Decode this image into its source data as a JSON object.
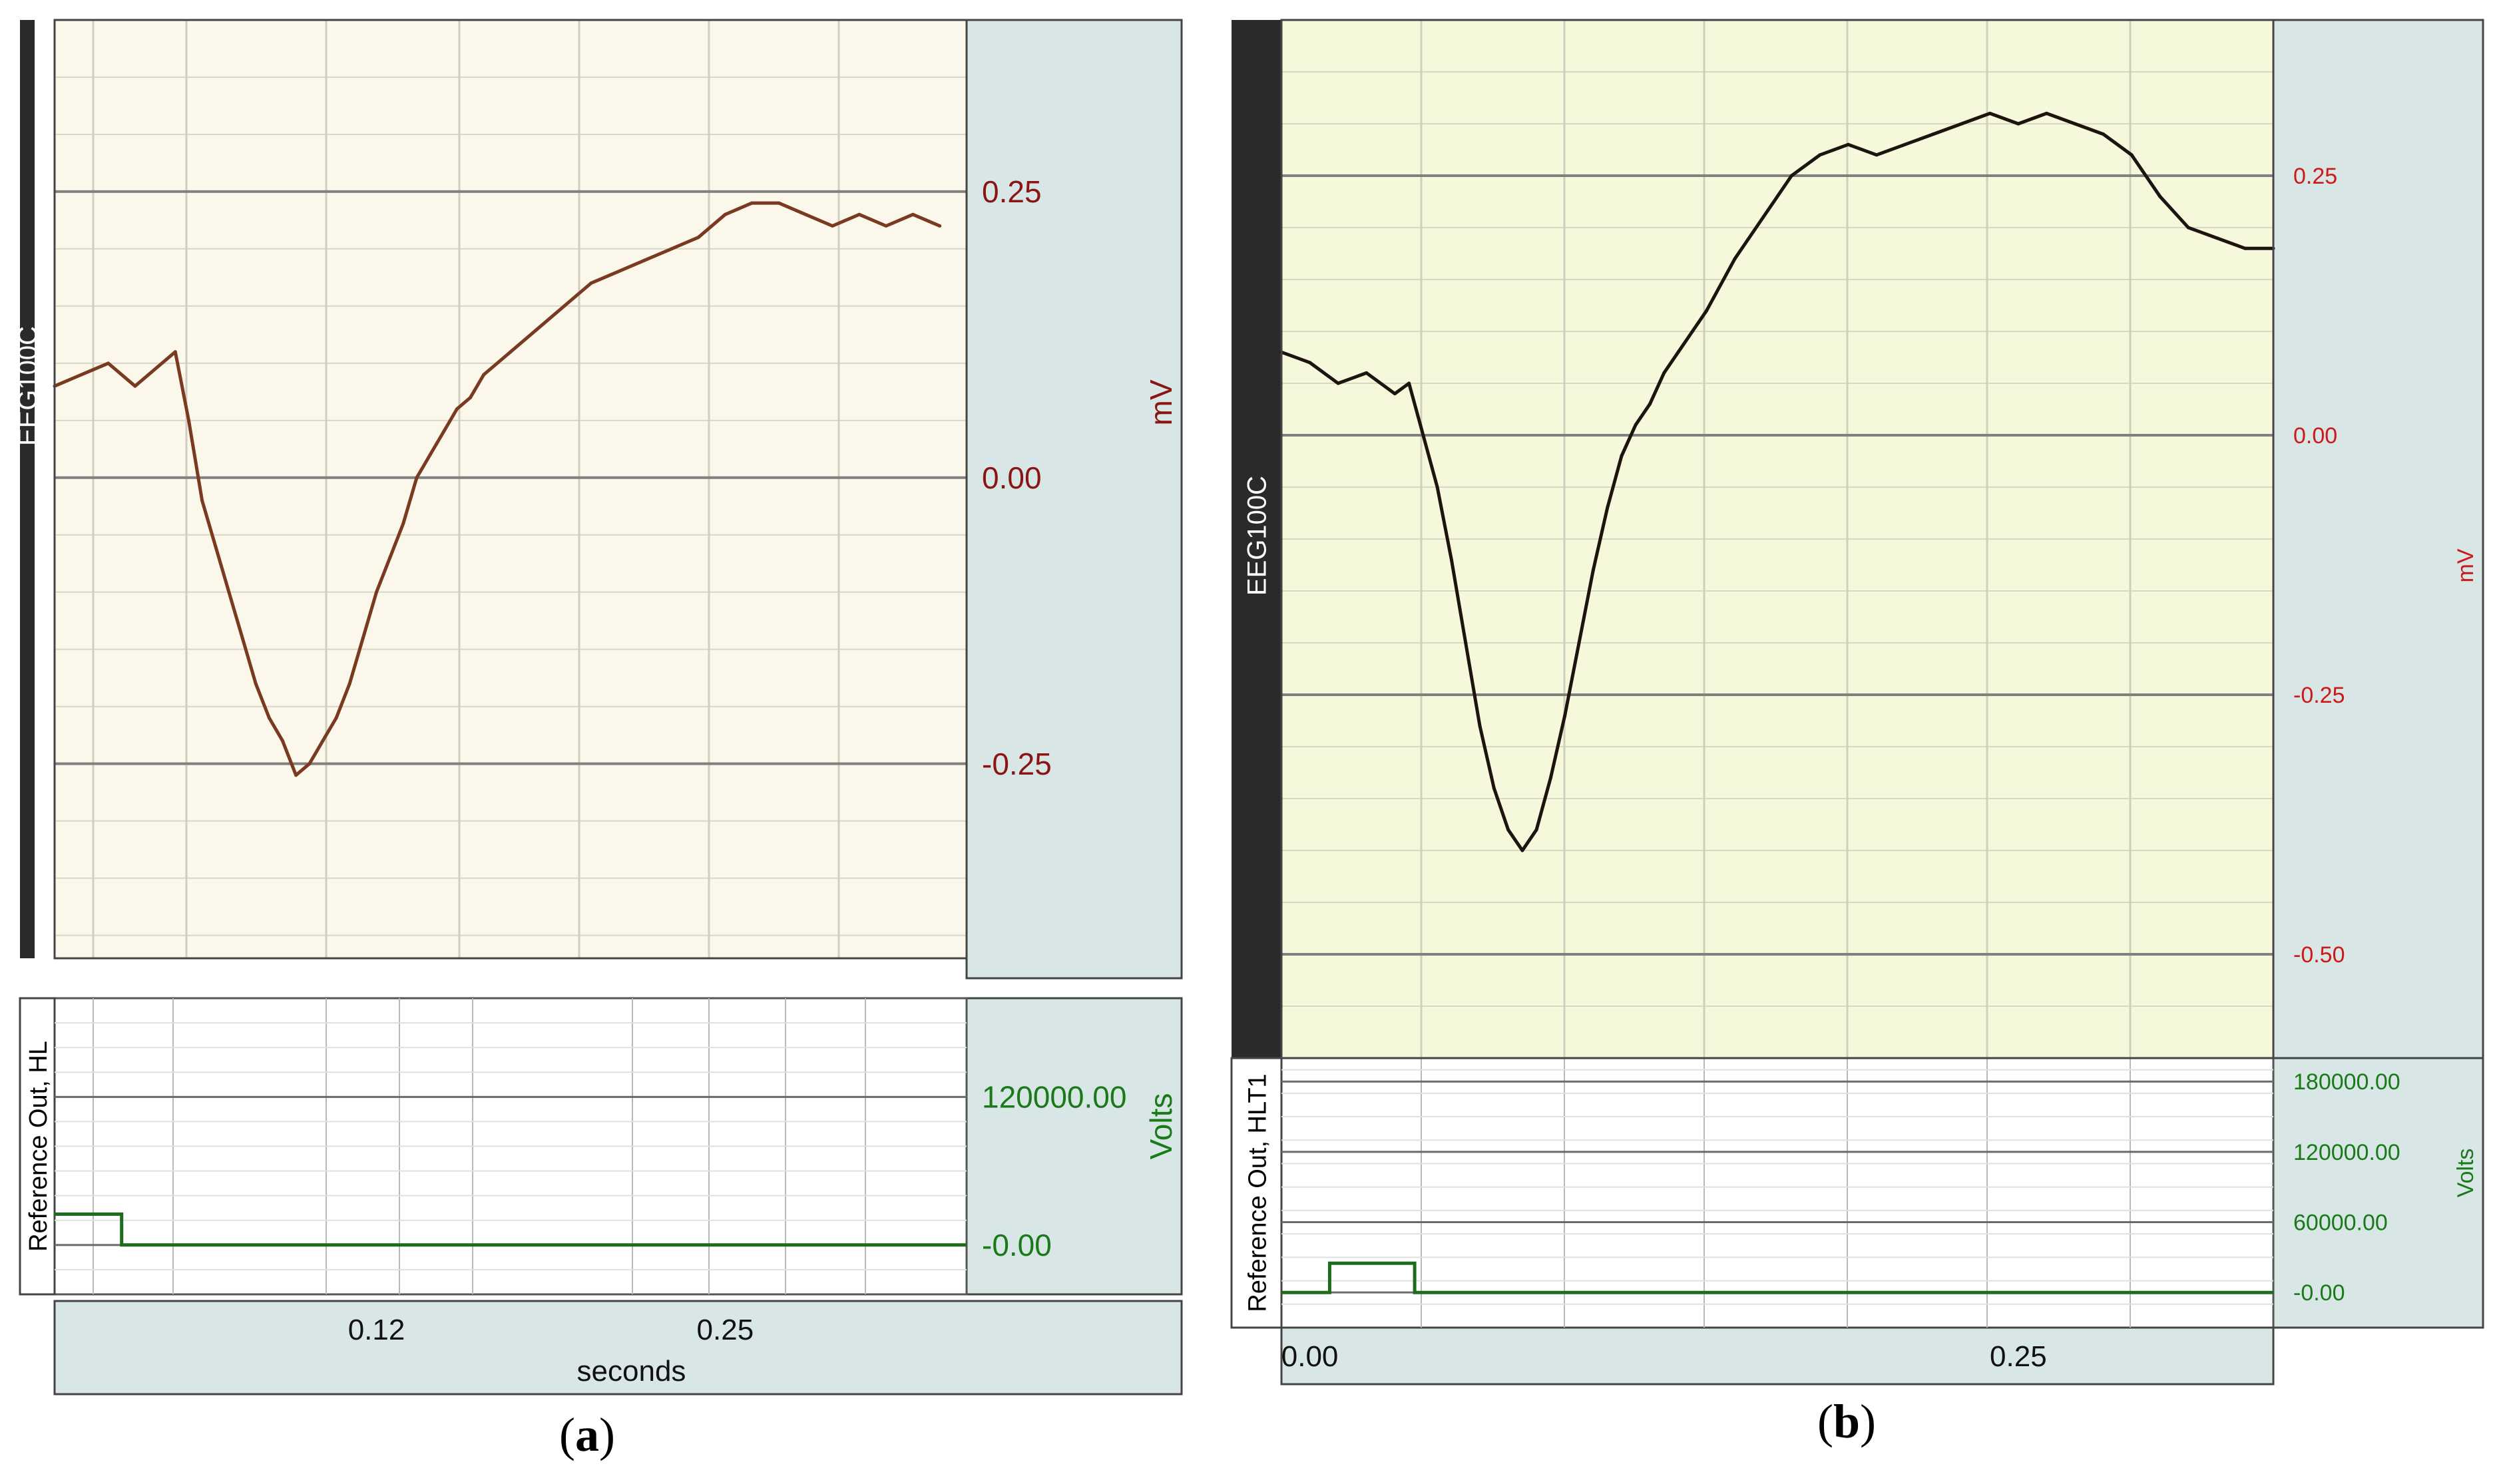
{
  "captions": {
    "a": "a",
    "b": "b"
  },
  "colors": {
    "plot_bg_a": "#fbf7ea",
    "plot_bg_b": "#f6f8dc",
    "lower_bg": "#ffffff",
    "side_panel": "#d9e6e6",
    "dark_strip": "#2a2a2a",
    "eeg_trace_a": "#7a3a22",
    "eeg_trace_b": "#1e140f",
    "ref_trace": "#1d6b1d",
    "mv_tick": "#cc1a1a",
    "mv_tick_a": "#8a1515",
    "volts_tick": "#1a7a1a"
  },
  "chart_data": [
    {
      "id": "a",
      "type": "line",
      "upper": {
        "channel_label": "EEG100C",
        "unit": "mV",
        "ytick_labels": [
          "0.25",
          "0.00",
          "-0.25"
        ],
        "yticks": [
          0.25,
          0.0,
          -0.25
        ],
        "ylim": [
          -0.42,
          0.4
        ],
        "xlim": [
          0.0,
          0.34
        ],
        "series": [
          {
            "name": "EEG100C",
            "x": [
              0.0,
              0.01,
              0.02,
              0.03,
              0.04,
              0.045,
              0.05,
              0.055,
              0.06,
              0.065,
              0.07,
              0.075,
              0.08,
              0.085,
              0.09,
              0.095,
              0.1,
              0.105,
              0.11,
              0.115,
              0.12,
              0.125,
              0.13,
              0.135,
              0.14,
              0.145,
              0.15,
              0.155,
              0.16,
              0.17,
              0.18,
              0.19,
              0.2,
              0.21,
              0.22,
              0.23,
              0.24,
              0.25,
              0.26,
              0.27,
              0.28,
              0.29,
              0.3,
              0.31,
              0.32,
              0.33
            ],
            "y": [
              0.08,
              0.09,
              0.1,
              0.08,
              0.1,
              0.11,
              0.05,
              -0.02,
              -0.06,
              -0.1,
              -0.14,
              -0.18,
              -0.21,
              -0.23,
              -0.26,
              -0.25,
              -0.23,
              -0.21,
              -0.18,
              -0.14,
              -0.1,
              -0.07,
              -0.04,
              0.0,
              0.02,
              0.04,
              0.06,
              0.07,
              0.09,
              0.11,
              0.13,
              0.15,
              0.17,
              0.18,
              0.19,
              0.2,
              0.21,
              0.23,
              0.24,
              0.24,
              0.23,
              0.22,
              0.23,
              0.22,
              0.23,
              0.22
            ]
          }
        ]
      },
      "lower": {
        "channel_label": "Reference Out, HL",
        "unit": "Volts",
        "ytick_labels": [
          "120000.00",
          "-0.00"
        ],
        "yticks": [
          120000,
          0
        ],
        "ylim": [
          -40000,
          200000
        ],
        "series": [
          {
            "name": "Reference Out",
            "x": [
              0.0,
              0.025,
              0.025,
              0.34
            ],
            "y": [
              25000,
              25000,
              0,
              0
            ]
          }
        ]
      },
      "xaxis": {
        "label": "seconds",
        "tick_labels": [
          "0.12",
          "0.25"
        ],
        "ticks": [
          0.12,
          0.25
        ]
      }
    },
    {
      "id": "b",
      "type": "line",
      "upper": {
        "channel_label": "EEG100C",
        "unit": "mV",
        "ytick_labels": [
          "0.25",
          "0.00",
          "-0.25",
          "-0.50"
        ],
        "yticks": [
          0.25,
          0.0,
          -0.25,
          -0.5
        ],
        "ylim": [
          -0.6,
          0.4
        ],
        "xlim": [
          -0.01,
          0.34
        ],
        "series": [
          {
            "name": "EEG100C",
            "x": [
              -0.01,
              0.0,
              0.01,
              0.02,
              0.03,
              0.035,
              0.04,
              0.045,
              0.05,
              0.055,
              0.06,
              0.065,
              0.07,
              0.075,
              0.08,
              0.085,
              0.09,
              0.095,
              0.1,
              0.105,
              0.11,
              0.115,
              0.12,
              0.125,
              0.13,
              0.135,
              0.14,
              0.15,
              0.16,
              0.17,
              0.18,
              0.19,
              0.2,
              0.21,
              0.22,
              0.23,
              0.24,
              0.25,
              0.26,
              0.27,
              0.28,
              0.29,
              0.3,
              0.31,
              0.32,
              0.33,
              0.34
            ],
            "y": [
              0.08,
              0.07,
              0.05,
              0.06,
              0.04,
              0.05,
              0.0,
              -0.05,
              -0.12,
              -0.2,
              -0.28,
              -0.34,
              -0.38,
              -0.4,
              -0.38,
              -0.33,
              -0.27,
              -0.2,
              -0.13,
              -0.07,
              -0.02,
              0.01,
              0.03,
              0.06,
              0.08,
              0.1,
              0.12,
              0.17,
              0.21,
              0.25,
              0.27,
              0.28,
              0.27,
              0.28,
              0.29,
              0.3,
              0.31,
              0.3,
              0.31,
              0.3,
              0.29,
              0.27,
              0.23,
              0.2,
              0.19,
              0.18,
              0.18
            ]
          }
        ]
      },
      "lower": {
        "channel_label": "Reference Out, HLT1",
        "unit": "Volts",
        "ytick_labels": [
          "180000.00",
          "120000.00",
          "60000.00",
          "-0.00"
        ],
        "yticks": [
          180000,
          120000,
          60000,
          0
        ],
        "ylim": [
          -30000,
          200000
        ],
        "series": [
          {
            "name": "Reference Out",
            "x": [
              -0.01,
              0.007,
              0.007,
              0.037,
              0.037,
              0.34
            ],
            "y": [
              0,
              0,
              25000,
              25000,
              0,
              0
            ]
          }
        ]
      },
      "xaxis": {
        "label": "",
        "tick_labels": [
          "0.00",
          "0.25"
        ],
        "ticks": [
          0.0,
          0.25
        ]
      }
    }
  ]
}
